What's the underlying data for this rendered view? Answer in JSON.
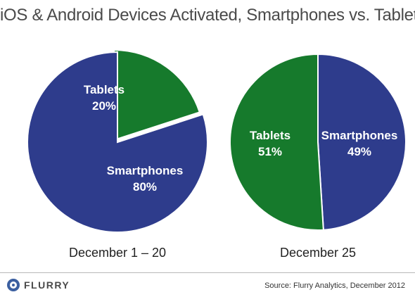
{
  "title": "iOS & Android Devices Activated, Smartphones vs. Tablets",
  "colors": {
    "smartphones": "#2e3c8c",
    "tablets": "#167a2c",
    "edge": "#ffffff"
  },
  "chart_data": [
    {
      "type": "pie",
      "caption": "December 1 – 20",
      "slices": [
        {
          "name": "Tablets",
          "value": 20,
          "label": "20%"
        },
        {
          "name": "Smartphones",
          "value": 80,
          "label": "80%"
        }
      ]
    },
    {
      "type": "pie",
      "caption": "December 25",
      "slices": [
        {
          "name": "Smartphones",
          "value": 49,
          "label": "49%"
        },
        {
          "name": "Tablets",
          "value": 51,
          "label": "51%"
        }
      ]
    }
  ],
  "footer": {
    "logo_text": "FLURRY",
    "source": "Source: Flurry Analytics, December 2012"
  }
}
